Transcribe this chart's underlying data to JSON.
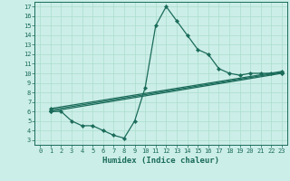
{
  "xlabel": "Humidex (Indice chaleur)",
  "bg_color": "#cceee8",
  "line_color": "#1a6b5a",
  "grid_color": "#aaddcc",
  "xlim": [
    -0.5,
    23.5
  ],
  "ylim": [
    2.5,
    17.5
  ],
  "xticks": [
    0,
    1,
    2,
    3,
    4,
    5,
    6,
    7,
    8,
    9,
    10,
    11,
    12,
    13,
    14,
    15,
    16,
    17,
    18,
    19,
    20,
    21,
    22,
    23
  ],
  "yticks": [
    3,
    4,
    5,
    6,
    7,
    8,
    9,
    10,
    11,
    12,
    13,
    14,
    15,
    16,
    17
  ],
  "line1_x": [
    1,
    2,
    3,
    4,
    5,
    6,
    7,
    8,
    9,
    10,
    11,
    12,
    13,
    14,
    15,
    16,
    17,
    18,
    19,
    20,
    21,
    22,
    23
  ],
  "line1_y": [
    6,
    6,
    5,
    4.5,
    4.5,
    4,
    3.5,
    3.2,
    5,
    8.5,
    15,
    17,
    15.5,
    14,
    12.5,
    12,
    10.5,
    10,
    9.8,
    10,
    10,
    10,
    10
  ],
  "line2_x": [
    1,
    23
  ],
  "line2_y": [
    6,
    10
  ],
  "line3_x": [
    1,
    23
  ],
  "line3_y": [
    6.15,
    10.1
  ],
  "line4_x": [
    1,
    23
  ],
  "line4_y": [
    6.3,
    10.2
  ],
  "tick_fontsize": 5.0,
  "xlabel_fontsize": 6.5
}
